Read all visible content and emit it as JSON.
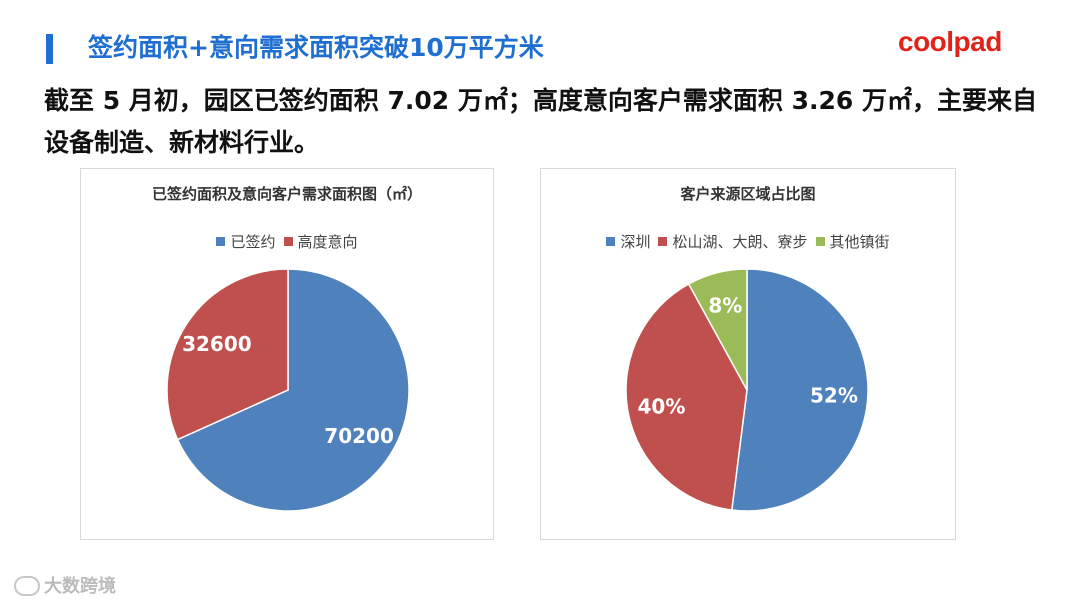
{
  "header": {
    "title": "签约面积+意向需求面积突破10万平方米",
    "brand": "coolpad"
  },
  "summary": "截至 5 月初，园区已签约面积 7.02 万㎡；高度意向客户需求面积 3.26 万㎡，主要来自设备制造、新材料行业。",
  "watermark": "大数跨境",
  "chart_data": [
    {
      "type": "pie",
      "title": "已签约面积及意向客户需求面积图（㎡）",
      "legend_position": "top",
      "series": [
        {
          "name": "已签约",
          "value": 70200,
          "label": "70200",
          "color": "#4f81bd"
        },
        {
          "name": "高度意向",
          "value": 32600,
          "label": "32600",
          "color": "#c0504d"
        }
      ]
    },
    {
      "type": "pie",
      "title": "客户来源区域占比图",
      "legend_position": "top",
      "series": [
        {
          "name": "深圳",
          "value": 52,
          "label": "52%",
          "color": "#4f81bd"
        },
        {
          "name": "松山湖、大朗、寮步",
          "value": 40,
          "label": "40%",
          "color": "#c0504d"
        },
        {
          "name": "其他镇街",
          "value": 8,
          "label": "8%",
          "color": "#9bbb59"
        }
      ]
    }
  ]
}
